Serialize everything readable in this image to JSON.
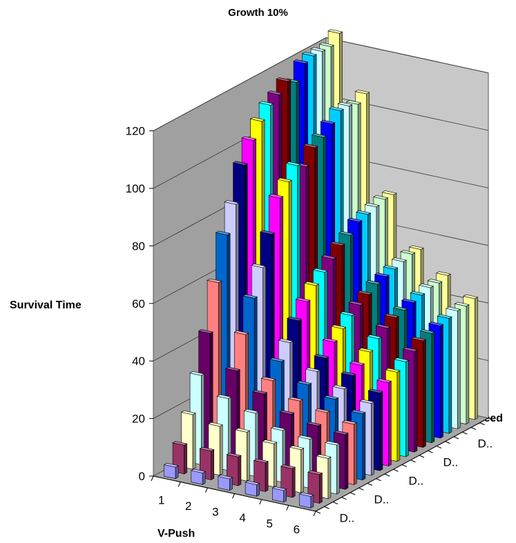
{
  "chart_data": {
    "type": "bar3d",
    "title": "Growth 10%",
    "ylabel": "Survival Time",
    "xlabel": "V-Push",
    "zlabel": "Speed",
    "ylim": [
      0,
      120
    ],
    "yticks": [
      "0",
      "20",
      "40",
      "60",
      "80",
      "100",
      "120"
    ],
    "x_categories": [
      "1",
      "2",
      "3",
      "4",
      "5",
      "6"
    ],
    "depth_tick_labels": [
      "D..",
      "D..",
      "D..",
      "D..",
      "D.."
    ],
    "grid": true,
    "legend": "none",
    "series_colors": [
      "#9999ff",
      "#993366",
      "#ffffcc",
      "#ccffff",
      "#660066",
      "#ff8080",
      "#0066cc",
      "#ccccff",
      "#000080",
      "#ff00ff",
      "#ffff00",
      "#00ffff",
      "#800080",
      "#800000",
      "#008080",
      "#0000ff",
      "#00ccff",
      "#ccffff",
      "#ccffcc",
      "#ffff99"
    ],
    "values": [
      [
        4,
        4,
        4,
        4,
        4,
        4
      ],
      [
        10,
        10,
        10,
        10,
        10,
        10
      ],
      [
        19,
        17,
        17,
        15,
        15,
        14
      ],
      [
        31,
        25,
        22,
        18,
        17,
        17
      ],
      [
        44,
        33,
        27,
        22,
        20,
        19
      ],
      [
        60,
        44,
        30,
        25,
        23,
        21
      ],
      [
        75,
        55,
        35,
        29,
        26,
        23
      ],
      [
        84,
        64,
        40,
        32,
        28,
        25
      ],
      [
        96,
        74,
        46,
        35,
        31,
        27
      ],
      [
        103,
        85,
        51,
        39,
        33,
        29
      ],
      [
        108,
        89,
        55,
        42,
        36,
        31
      ],
      [
        112,
        93,
        58,
        45,
        39,
        33
      ],
      [
        114,
        91,
        61,
        47,
        41,
        35
      ],
      [
        117,
        96,
        64,
        49,
        43,
        37
      ],
      [
        115,
        98,
        66,
        51,
        44,
        38
      ],
      [
        120,
        101,
        69,
        52,
        45,
        39
      ],
      [
        121,
        104,
        70,
        53,
        46,
        40
      ],
      [
        121,
        104,
        71,
        54,
        47,
        41
      ],
      [
        121,
        103,
        72,
        55,
        47,
        41
      ],
      [
        124,
        105,
        72,
        55,
        48,
        42
      ]
    ]
  }
}
